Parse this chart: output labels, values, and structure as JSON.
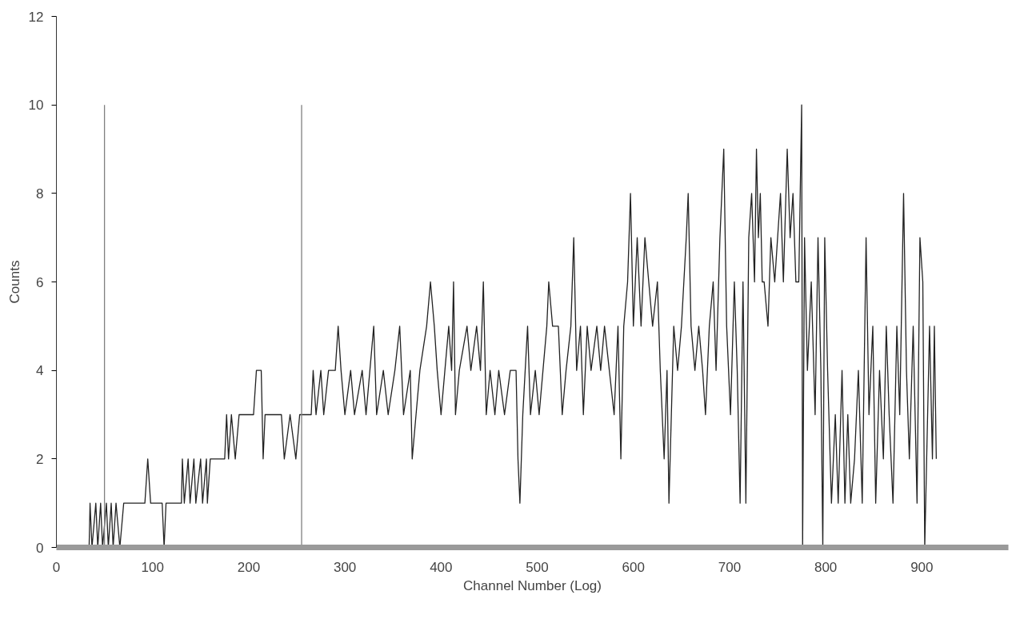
{
  "chart_data": {
    "type": "line",
    "xlabel": "Channel Number (Log)",
    "ylabel": "Counts",
    "xlim": [
      0,
      990
    ],
    "xticks": [
      0,
      100,
      200,
      300,
      400,
      500,
      600,
      700,
      800,
      900
    ],
    "ylim": [
      0,
      12
    ],
    "yticks": [
      0,
      2,
      4,
      6,
      8,
      10,
      12
    ],
    "grid": false,
    "series": [
      {
        "color": "#222222",
        "x": [
          34,
          35,
          37,
          41,
          43,
          46,
          48,
          52,
          54,
          57,
          59,
          62,
          66,
          70,
          92,
          95,
          98,
          110,
          112,
          114,
          130,
          131,
          133,
          137,
          139,
          143,
          145,
          150,
          152,
          156,
          157,
          160,
          175,
          177,
          179,
          182,
          186,
          190,
          205,
          208,
          213,
          215,
          217,
          234,
          237,
          243,
          249,
          253,
          265,
          267,
          270,
          275,
          278,
          283,
          290,
          293,
          296,
          300,
          306,
          310,
          318,
          322,
          330,
          333,
          340,
          345,
          352,
          357,
          361,
          368,
          370,
          374,
          378,
          385,
          389,
          393,
          396,
          400,
          404,
          408,
          411,
          413,
          415,
          419,
          427,
          431,
          437,
          441,
          444,
          447,
          451,
          456,
          460,
          466,
          472,
          478,
          480,
          482,
          485,
          490,
          493,
          498,
          502,
          506,
          510,
          512,
          516,
          522,
          526,
          530,
          535,
          538,
          541,
          545,
          548,
          552,
          556,
          562,
          566,
          570,
          575,
          580,
          584,
          587,
          590,
          594,
          597,
          600,
          604,
          608,
          612,
          616,
          620,
          625,
          628,
          632,
          635,
          637,
          642,
          646,
          650,
          655,
          657,
          660,
          664,
          668,
          672,
          675,
          679,
          683,
          686,
          690,
          694,
          697,
          701,
          705,
          708,
          711,
          714,
          717,
          720,
          723,
          726,
          728,
          730,
          732,
          734,
          736,
          740,
          743,
          747,
          750,
          753,
          756,
          760,
          763,
          766,
          769,
          772,
          775,
          776,
          778,
          781,
          785,
          789,
          792,
          795,
          797,
          799,
          802,
          806,
          810,
          813,
          817,
          820,
          823,
          826,
          830,
          834,
          838,
          842,
          845,
          849,
          852,
          856,
          860,
          863,
          866,
          870,
          874,
          877,
          881,
          884,
          887,
          891,
          895,
          898,
          901,
          903,
          905,
          908,
          911,
          913,
          915
        ],
        "values": [
          0,
          1,
          0,
          1,
          0,
          1,
          0,
          1,
          0,
          1,
          0,
          1,
          0,
          1,
          1,
          2,
          1,
          1,
          0,
          1,
          1,
          2,
          1,
          2,
          1,
          2,
          1,
          2,
          1,
          2,
          1,
          2,
          2,
          3,
          2,
          3,
          2,
          3,
          3,
          4,
          4,
          2,
          3,
          3,
          2,
          3,
          2,
          3,
          3,
          4,
          3,
          4,
          3,
          4,
          4,
          5,
          4,
          3,
          4,
          3,
          4,
          3,
          5,
          3,
          4,
          3,
          4,
          5,
          3,
          4,
          2,
          3,
          4,
          5,
          6,
          5,
          4,
          3,
          4,
          5,
          4,
          6,
          3,
          4,
          5,
          4,
          5,
          4,
          6,
          3,
          4,
          3,
          4,
          3,
          4,
          4,
          2,
          1,
          3,
          5,
          3,
          4,
          3,
          4,
          5,
          6,
          5,
          5,
          3,
          4,
          5,
          7,
          4,
          5,
          3,
          5,
          4,
          5,
          4,
          5,
          4,
          3,
          5,
          2,
          5,
          6,
          8,
          5,
          7,
          5,
          7,
          6,
          5,
          6,
          4,
          2,
          4,
          1,
          5,
          4,
          5,
          7,
          8,
          5,
          4,
          5,
          4,
          3,
          5,
          6,
          4,
          7,
          9,
          5,
          3,
          6,
          4,
          1,
          6,
          1,
          7,
          8,
          6,
          9,
          7,
          8,
          6,
          6,
          5,
          7,
          6,
          7,
          8,
          6,
          9,
          7,
          8,
          6,
          6,
          10,
          0,
          7,
          4,
          6,
          3,
          7,
          4,
          0,
          7,
          4,
          1,
          3,
          1,
          4,
          1,
          3,
          1,
          2,
          4,
          1,
          7,
          3,
          5,
          1,
          4,
          2,
          5,
          3,
          1,
          5,
          3,
          8,
          4,
          2,
          5,
          1,
          7,
          6,
          0,
          2,
          5,
          2,
          5,
          2
        ]
      },
      {
        "color": "#808080",
        "x": [
          50,
          50
        ],
        "values": [
          0,
          10
        ]
      },
      {
        "color": "#808080",
        "x": [
          255,
          255
        ],
        "values": [
          0,
          10
        ]
      }
    ]
  }
}
